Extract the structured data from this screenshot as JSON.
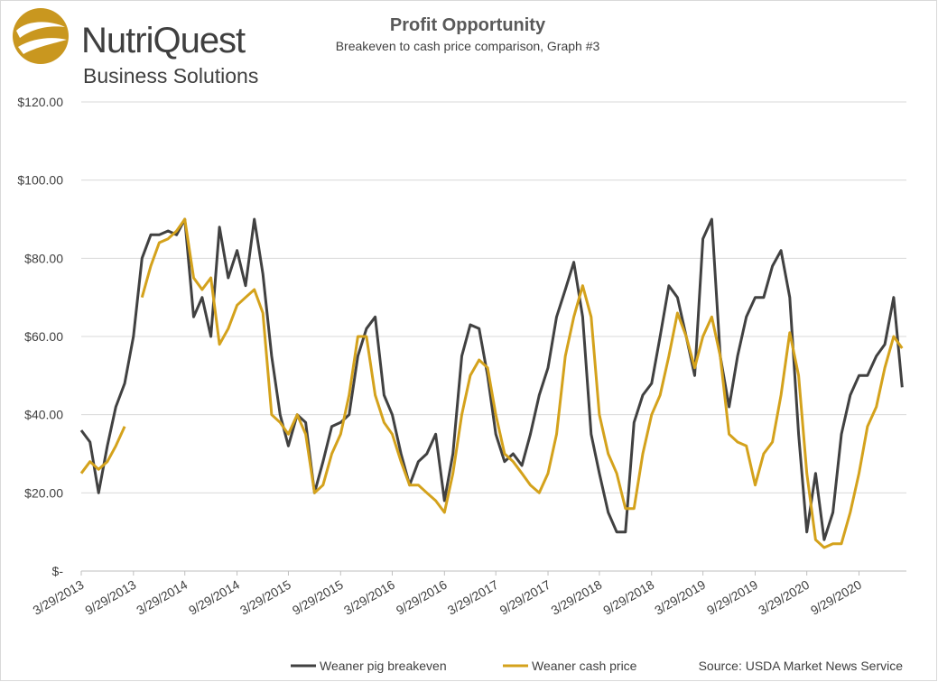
{
  "logo": {
    "name": "NutriQuest",
    "tagline": "Business Solutions"
  },
  "chart_data": {
    "type": "line",
    "title": "Profit Opportunity",
    "subtitle": "Breakeven to cash price comparison, Graph #3",
    "source": "Source: USDA Market News Service",
    "x": [
      "3/29/2013",
      "4/29/2013",
      "5/29/2013",
      "6/29/2013",
      "7/29/2013",
      "8/29/2013",
      "9/29/2013",
      "10/29/2013",
      "11/29/2013",
      "12/29/2013",
      "1/29/2014",
      "2/28/2014",
      "3/29/2014",
      "4/29/2014",
      "5/29/2014",
      "6/29/2014",
      "7/29/2014",
      "8/29/2014",
      "9/29/2014",
      "10/29/2014",
      "11/29/2014",
      "12/29/2014",
      "1/29/2015",
      "2/28/2015",
      "3/29/2015",
      "4/29/2015",
      "5/29/2015",
      "6/29/2015",
      "7/29/2015",
      "8/29/2015",
      "9/29/2015",
      "10/29/2015",
      "11/29/2015",
      "12/29/2015",
      "1/29/2016",
      "2/29/2016",
      "3/29/2016",
      "4/29/2016",
      "5/29/2016",
      "6/29/2016",
      "7/29/2016",
      "8/29/2016",
      "9/29/2016",
      "10/29/2016",
      "11/29/2016",
      "12/29/2016",
      "1/29/2017",
      "2/28/2017",
      "3/29/2017",
      "4/29/2017",
      "5/29/2017",
      "6/29/2017",
      "7/29/2017",
      "8/29/2017",
      "9/29/2017",
      "10/29/2017",
      "11/29/2017",
      "12/29/2017",
      "1/29/2018",
      "2/28/2018",
      "3/29/2018",
      "4/29/2018",
      "5/29/2018",
      "6/29/2018",
      "7/29/2018",
      "8/29/2018",
      "9/29/2018",
      "10/29/2018",
      "11/29/2018",
      "12/29/2018",
      "1/29/2019",
      "2/28/2019",
      "3/29/2019",
      "4/29/2019",
      "5/29/2019",
      "6/29/2019",
      "7/29/2019",
      "8/29/2019",
      "9/29/2019",
      "10/29/2019",
      "11/29/2019",
      "12/29/2019",
      "1/29/2020",
      "2/29/2020",
      "3/29/2020",
      "4/29/2020",
      "5/29/2020",
      "6/29/2020",
      "7/29/2020",
      "8/29/2020",
      "9/29/2020",
      "10/29/2020",
      "11/29/2020",
      "12/29/2020",
      "1/29/2021",
      "2/28/2021"
    ],
    "xlim": [
      "3/29/2013",
      "3/15/2021"
    ],
    "xticks": [
      "3/29/2013",
      "9/29/2013",
      "3/29/2014",
      "9/29/2014",
      "3/29/2015",
      "9/29/2015",
      "3/29/2016",
      "9/29/2016",
      "3/29/2017",
      "9/29/2017",
      "3/29/2018",
      "9/29/2018",
      "3/29/2019",
      "9/29/2019",
      "3/29/2020",
      "9/29/2020"
    ],
    "ylim": [
      0,
      120
    ],
    "yticks": [
      {
        "value": 0,
        "label": "$-"
      },
      {
        "value": 20,
        "label": "$20.00"
      },
      {
        "value": 40,
        "label": "$40.00"
      },
      {
        "value": 60,
        "label": "$60.00"
      },
      {
        "value": 80,
        "label": "$80.00"
      },
      {
        "value": 100,
        "label": "$100.00"
      },
      {
        "value": 120,
        "label": "$120.00"
      }
    ],
    "grid": true,
    "legend": "bottom",
    "series": [
      {
        "name": "Weaner pig breakeven",
        "color": "#414141",
        "values": [
          36,
          33,
          20,
          32,
          42,
          48,
          60,
          80,
          86,
          86,
          87,
          86,
          90,
          65,
          70,
          60,
          88,
          75,
          82,
          73,
          90,
          76,
          55,
          40,
          32,
          40,
          38,
          20,
          28,
          37,
          38,
          40,
          55,
          62,
          65,
          45,
          40,
          30,
          22,
          28,
          30,
          35,
          18,
          30,
          55,
          63,
          62,
          50,
          35,
          28,
          30,
          27,
          35,
          45,
          52,
          65,
          72,
          79,
          65,
          35,
          25,
          15,
          10,
          10,
          38,
          45,
          48,
          60,
          73,
          70,
          60,
          50,
          85,
          90,
          55,
          42,
          55,
          65,
          70,
          70,
          78,
          82,
          70,
          35,
          10,
          25,
          8,
          15,
          35,
          45,
          50,
          50,
          55,
          58,
          70,
          47
        ]
      },
      {
        "name": "Weaner cash price",
        "color": "#d4a21c",
        "values": [
          25,
          28,
          26,
          28,
          32,
          37,
          null,
          70,
          78,
          84,
          85,
          87,
          90,
          75,
          72,
          75,
          58,
          62,
          68,
          70,
          72,
          66,
          40,
          38,
          35,
          40,
          35,
          20,
          22,
          30,
          35,
          45,
          60,
          60,
          45,
          38,
          35,
          28,
          22,
          22,
          20,
          18,
          15,
          25,
          40,
          50,
          54,
          52,
          40,
          30,
          28,
          25,
          22,
          20,
          25,
          35,
          55,
          65,
          73,
          65,
          40,
          30,
          25,
          16,
          16,
          30,
          40,
          45,
          55,
          66,
          60,
          52,
          60,
          65,
          55,
          35,
          33,
          32,
          22,
          30,
          33,
          45,
          61,
          50,
          25,
          8,
          6,
          7,
          7,
          15,
          25,
          37,
          42,
          52,
          60,
          57
        ]
      }
    ]
  }
}
